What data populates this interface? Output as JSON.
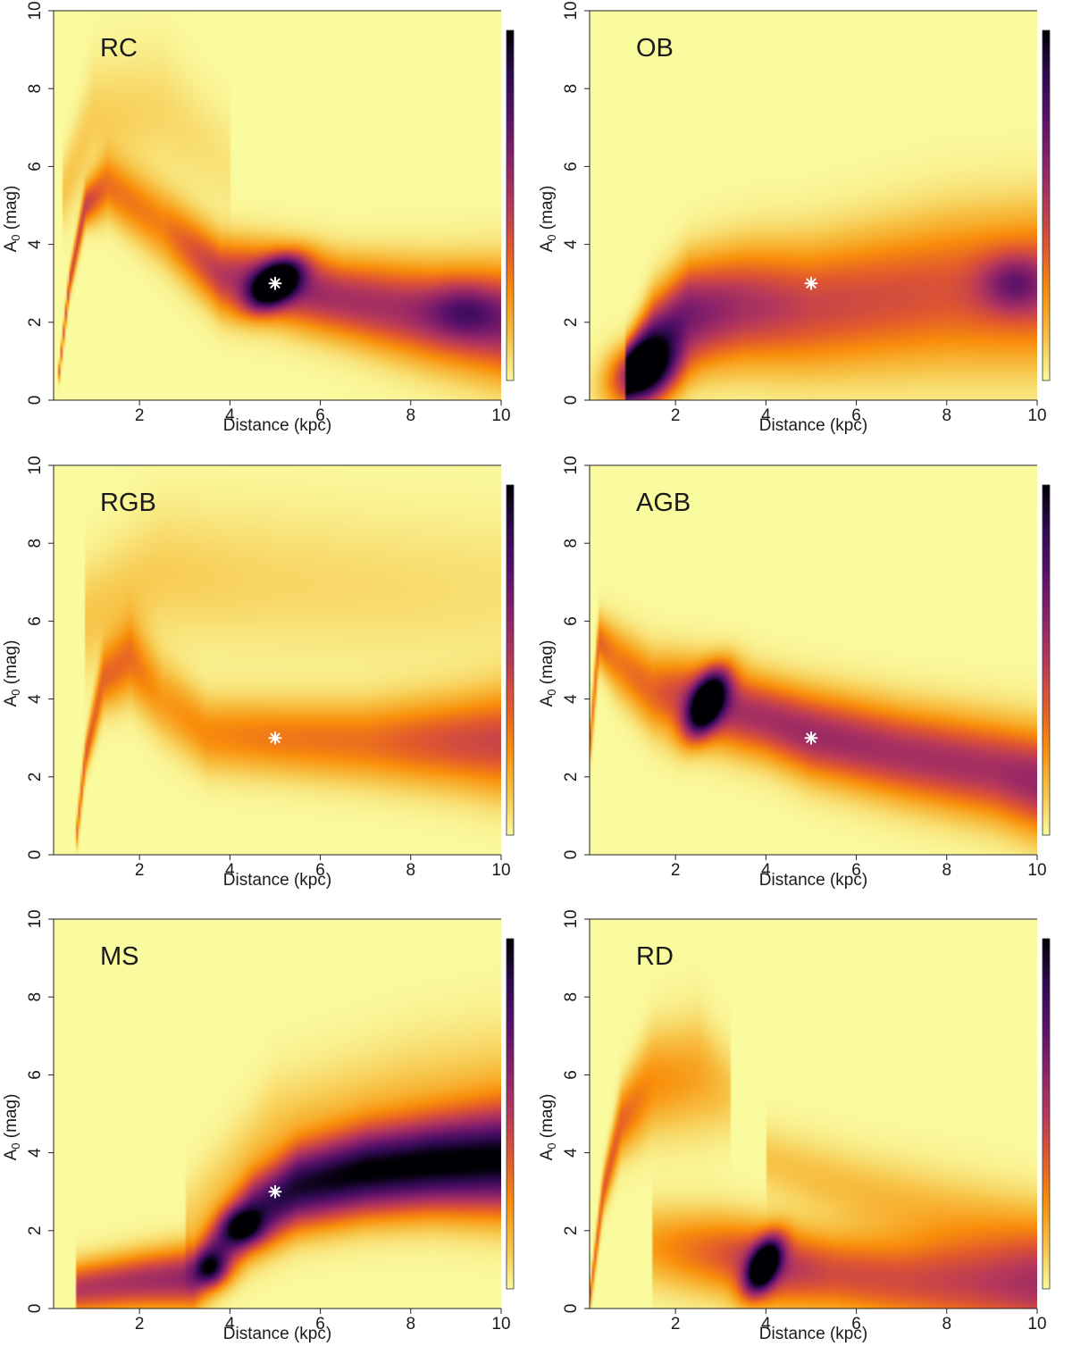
{
  "chart_data": [
    {
      "type": "heatmap",
      "label": "RC",
      "xlabel": "Distance (kpc)",
      "ylabel_main": "A",
      "ylabel_sub": "0",
      "ylabel_unit": " (mag)",
      "xlim": [
        0.1,
        10
      ],
      "ylim": [
        0,
        10
      ],
      "xticks": [
        2,
        4,
        6,
        8,
        10
      ],
      "yticks": [
        0,
        2,
        4,
        6,
        8,
        10
      ],
      "marker": {
        "x": 5,
        "y": 3,
        "symbol": "*",
        "color": "#ffffff"
      },
      "colormap": [
        "#fafa9e",
        "#f7c245",
        "#f98e0a",
        "#e2582e",
        "#b7385b",
        "#8a226a",
        "#5a1169",
        "#2d0a4f",
        "#000004"
      ],
      "ridges": [
        {
          "pts": [
            [
              0.2,
              0.5
            ],
            [
              0.45,
              3.0
            ],
            [
              0.8,
              5.0
            ],
            [
              1.3,
              5.5
            ],
            [
              2.5,
              4.5
            ],
            [
              3.8,
              3.2
            ],
            [
              5.0,
              3.0
            ],
            [
              6.5,
              2.6
            ],
            [
              8.5,
              2.2
            ],
            [
              10,
              2.0
            ]
          ],
          "w": [
            0.15,
            0.22,
            0.35,
            0.55,
            0.65,
            0.65,
            0.65,
            0.7,
            0.85,
            0.95
          ],
          "a": [
            0.35,
            0.45,
            0.45,
            0.3,
            0.28,
            0.5,
            0.6,
            0.55,
            0.55,
            0.6
          ]
        },
        {
          "pts": [
            [
              0.3,
              5.3
            ],
            [
              1.0,
              7.2
            ],
            [
              2.5,
              7.4
            ],
            [
              4.0,
              6.0
            ]
          ],
          "w": [
            0.6,
            1.0,
            1.1,
            0.9
          ],
          "a": [
            0.12,
            0.1,
            0.08,
            0.05
          ]
        }
      ],
      "spots": [
        {
          "x": 5.0,
          "y": 3.0,
          "sx": 0.3,
          "sy": 0.5,
          "a": 1.0,
          "rot": -0.7
        },
        {
          "x": 9.2,
          "y": 2.3,
          "sx": 0.6,
          "sy": 0.5,
          "a": 0.25,
          "rot": 0
        }
      ]
    },
    {
      "type": "heatmap",
      "label": "OB",
      "xlabel": "Distance (kpc)",
      "ylabel_main": "A",
      "ylabel_sub": "0",
      "ylabel_unit": " (mag)",
      "xlim": [
        0.1,
        10
      ],
      "ylim": [
        0,
        10
      ],
      "xticks": [
        2,
        4,
        6,
        8,
        10
      ],
      "yticks": [
        0,
        2,
        4,
        6,
        8,
        10
      ],
      "marker": {
        "x": 5,
        "y": 3,
        "symbol": "*",
        "color": "#ffffff"
      },
      "colormap": [
        "#fafa9e",
        "#f7c245",
        "#f98e0a",
        "#e2582e",
        "#b7385b",
        "#8a226a",
        "#5a1169",
        "#2d0a4f",
        "#000004"
      ],
      "ridges": [
        {
          "pts": [
            [
              0.9,
              0.6
            ],
            [
              1.5,
              1.4
            ],
            [
              2.3,
              2.2
            ],
            [
              3.5,
              2.4
            ],
            [
              5.0,
              2.4
            ],
            [
              6.5,
              2.6
            ],
            [
              8.0,
              2.8
            ],
            [
              10,
              2.9
            ]
          ],
          "w": [
            0.5,
            0.8,
            0.9,
            1.0,
            1.1,
            1.2,
            1.3,
            1.3
          ],
          "a": [
            0.8,
            0.78,
            0.68,
            0.55,
            0.45,
            0.42,
            0.4,
            0.45
          ]
        }
      ],
      "spots": [
        {
          "x": 1.3,
          "y": 0.7,
          "sx": 0.45,
          "sy": 0.6,
          "a": 0.8,
          "rot": -0.6
        },
        {
          "x": 9.5,
          "y": 3.0,
          "sx": 0.5,
          "sy": 0.5,
          "a": 0.3,
          "rot": 0
        }
      ]
    },
    {
      "type": "heatmap",
      "label": "RGB",
      "xlabel": "Distance (kpc)",
      "ylabel_main": "A",
      "ylabel_sub": "0",
      "ylabel_unit": " (mag)",
      "xlim": [
        0.1,
        10
      ],
      "ylim": [
        0,
        10
      ],
      "xticks": [
        2,
        4,
        6,
        8,
        10
      ],
      "yticks": [
        0,
        2,
        4,
        6,
        8,
        10
      ],
      "marker": {
        "x": 5,
        "y": 3,
        "symbol": "*",
        "color": "#ffffff"
      },
      "colormap": [
        "#fafa9e",
        "#f7c245",
        "#f98e0a",
        "#e2582e",
        "#b7385b",
        "#8a226a",
        "#5a1169",
        "#2d0a4f",
        "#000004"
      ],
      "ridges": [
        {
          "pts": [
            [
              0.6,
              0.4
            ],
            [
              0.8,
              2.5
            ],
            [
              1.2,
              4.5
            ],
            [
              1.8,
              5.0
            ],
            [
              2.5,
              4.0
            ],
            [
              3.5,
              3.1
            ],
            [
              5.0,
              3.0
            ],
            [
              7.0,
              2.9
            ],
            [
              9.0,
              2.9
            ],
            [
              10,
              2.9
            ]
          ],
          "w": [
            0.25,
            0.3,
            0.55,
            0.7,
            0.7,
            0.65,
            0.65,
            0.7,
            0.8,
            0.9
          ],
          "a": [
            0.32,
            0.38,
            0.32,
            0.3,
            0.22,
            0.26,
            0.3,
            0.32,
            0.42,
            0.45
          ]
        },
        {
          "pts": [
            [
              0.8,
              6.0
            ],
            [
              2.5,
              7.2
            ],
            [
              5.0,
              7.0
            ],
            [
              8.0,
              6.8
            ],
            [
              10,
              6.8
            ]
          ],
          "w": [
            1.0,
            1.2,
            1.3,
            1.3,
            1.3
          ],
          "a": [
            0.12,
            0.1,
            0.08,
            0.07,
            0.06
          ]
        }
      ],
      "spots": []
    },
    {
      "type": "heatmap",
      "label": "AGB",
      "xlabel": "Distance (kpc)",
      "ylabel_main": "A",
      "ylabel_sub": "0",
      "ylabel_unit": " (mag)",
      "xlim": [
        0.1,
        10
      ],
      "ylim": [
        0,
        10
      ],
      "xticks": [
        2,
        4,
        6,
        8,
        10
      ],
      "yticks": [
        0,
        2,
        4,
        6,
        8,
        10
      ],
      "marker": {
        "x": 5,
        "y": 3,
        "symbol": "*",
        "color": "#ffffff"
      },
      "colormap": [
        "#fafa9e",
        "#f7c245",
        "#f98e0a",
        "#e2582e",
        "#b7385b",
        "#8a226a",
        "#5a1169",
        "#2d0a4f",
        "#000004"
      ],
      "ridges": [
        {
          "pts": [
            [
              0.05,
              2.0
            ],
            [
              0.3,
              5.5
            ],
            [
              0.7,
              5.0
            ],
            [
              1.5,
              4.2
            ],
            [
              2.7,
              3.9
            ],
            [
              4.0,
              3.5
            ],
            [
              5.0,
              3.1
            ],
            [
              7.0,
              2.6
            ],
            [
              9.0,
              2.2
            ],
            [
              10,
              1.9
            ]
          ],
          "w": [
            0.3,
            0.45,
            0.6,
            0.7,
            0.7,
            0.7,
            0.75,
            0.8,
            0.85,
            0.9
          ],
          "a": [
            0.3,
            0.35,
            0.3,
            0.35,
            0.55,
            0.55,
            0.58,
            0.55,
            0.55,
            0.6
          ]
        }
      ],
      "spots": [
        {
          "x": 2.7,
          "y": 3.9,
          "sx": 0.25,
          "sy": 0.6,
          "a": 1.0,
          "rot": -0.35
        }
      ]
    },
    {
      "type": "heatmap",
      "label": "MS",
      "xlabel": "Distance (kpc)",
      "ylabel_main": "A",
      "ylabel_sub": "0",
      "ylabel_unit": " (mag)",
      "xlim": [
        0.1,
        10
      ],
      "ylim": [
        0,
        10
      ],
      "xticks": [
        2,
        4,
        6,
        8,
        10
      ],
      "yticks": [
        0,
        2,
        4,
        6,
        8,
        10
      ],
      "marker": {
        "x": 5,
        "y": 3,
        "symbol": "*",
        "color": "#ffffff"
      },
      "colormap": [
        "#fafa9e",
        "#f7c245",
        "#f98e0a",
        "#e2582e",
        "#b7385b",
        "#8a226a",
        "#5a1169",
        "#2d0a4f",
        "#000004"
      ],
      "ridges": [
        {
          "pts": [
            [
              0.6,
              0.5
            ],
            [
              2.0,
              0.7
            ],
            [
              3.2,
              0.8
            ],
            [
              3.8,
              1.6
            ],
            [
              4.5,
              2.4
            ],
            [
              5.5,
              3.1
            ],
            [
              7.0,
              3.5
            ],
            [
              8.5,
              3.7
            ],
            [
              10,
              3.8
            ]
          ],
          "w": [
            0.45,
            0.5,
            0.55,
            0.6,
            0.65,
            0.7,
            0.75,
            0.8,
            0.9
          ],
          "a": [
            0.5,
            0.55,
            0.6,
            0.68,
            0.8,
            0.9,
            0.98,
            1.0,
            0.98
          ]
        },
        {
          "pts": [
            [
              3.0,
              2.0
            ],
            [
              5.0,
              4.5
            ],
            [
              8.0,
              5.4
            ],
            [
              10,
              5.6
            ]
          ],
          "w": [
            0.8,
            1.0,
            1.1,
            1.2
          ],
          "a": [
            0.1,
            0.12,
            0.12,
            0.12
          ]
        }
      ],
      "spots": [
        {
          "x": 3.6,
          "y": 1.0,
          "sx": 0.25,
          "sy": 0.3,
          "a": 0.45,
          "rot": 0
        },
        {
          "x": 4.3,
          "y": 2.1,
          "sx": 0.3,
          "sy": 0.3,
          "a": 0.45,
          "rot": 0
        }
      ]
    },
    {
      "type": "heatmap",
      "label": "RD",
      "xlabel": "Distance (kpc)",
      "ylabel_main": "A",
      "ylabel_sub": "0",
      "ylabel_unit": " (mag)",
      "xlim": [
        0.1,
        10
      ],
      "ylim": [
        0,
        10
      ],
      "xticks": [
        2,
        4,
        6,
        8,
        10
      ],
      "yticks": [
        0,
        2,
        4,
        6,
        8,
        10
      ],
      "colormap": [
        "#fafa9e",
        "#f7c245",
        "#f98e0a",
        "#e2582e",
        "#b7385b",
        "#8a226a",
        "#5a1169",
        "#2d0a4f",
        "#000004"
      ],
      "ridges": [
        {
          "pts": [
            [
              0.1,
              0.2
            ],
            [
              0.4,
              3.0
            ],
            [
              0.8,
              4.8
            ],
            [
              1.5,
              5.8
            ],
            [
              2.5,
              6.0
            ],
            [
              3.2,
              5.6
            ]
          ],
          "w": [
            0.2,
            0.35,
            0.6,
            0.9,
            1.0,
            0.8
          ],
          "a": [
            0.35,
            0.38,
            0.35,
            0.25,
            0.2,
            0.12
          ]
        },
        {
          "pts": [
            [
              1.5,
              1.6
            ],
            [
              3.0,
              1.4
            ],
            [
              4.0,
              1.1
            ],
            [
              5.5,
              0.9
            ],
            [
              7.0,
              0.7
            ],
            [
              8.5,
              0.6
            ],
            [
              10,
              0.5
            ]
          ],
          "w": [
            0.7,
            0.7,
            0.7,
            0.7,
            0.75,
            0.8,
            0.85
          ],
          "a": [
            0.22,
            0.38,
            0.55,
            0.42,
            0.42,
            0.45,
            0.5
          ]
        },
        {
          "pts": [
            [
              4.0,
              3.8
            ],
            [
              6.0,
              3.0
            ],
            [
              8.0,
              2.3
            ],
            [
              10,
              1.8
            ]
          ],
          "w": [
            0.6,
            0.7,
            0.8,
            0.8
          ],
          "a": [
            0.12,
            0.14,
            0.16,
            0.18
          ]
        }
      ],
      "spots": [
        {
          "x": 3.95,
          "y": 1.1,
          "sx": 0.22,
          "sy": 0.5,
          "a": 1.0,
          "rot": -0.35
        }
      ]
    }
  ]
}
